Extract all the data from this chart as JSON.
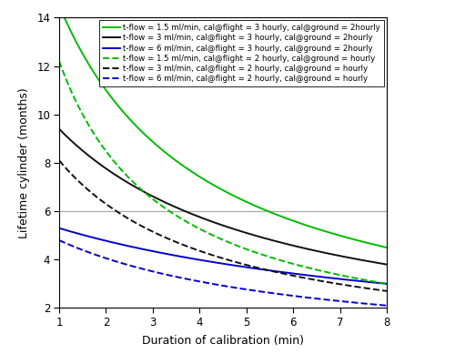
{
  "x_min": 1,
  "x_max": 8,
  "y_min": 2,
  "y_max": 14,
  "xlabel": "Duration of calibration (min)",
  "ylabel": "Lifetime cylinder (months)",
  "hline_y": 6,
  "hline_color": "#aaaaaa",
  "curve_params": [
    {
      "A": 45.675,
      "B": 2.15,
      "color": "#00bb00",
      "linestyle": "solid",
      "label": "t-flow = 1.5 ml/min, cal@flight = 3 hourly, cal@ground = 2hourly"
    },
    {
      "A": 44.65,
      "B": 3.75,
      "color": "#111111",
      "linestyle": "solid",
      "label": "t-flow = 3 ml/min, cal@flight = 3 hourly, cal@ground = 2hourly"
    },
    {
      "A": 48.39,
      "B": 8.13,
      "color": "#0000cc",
      "linestyle": "solid",
      "label": "t-flow = 6 ml/min, cal@flight = 3 hourly, cal@ground = 2hourly"
    },
    {
      "A": 27.85,
      "B": 1.283,
      "color": "#00bb00",
      "linestyle": "dashed",
      "label": "t-flow = 1.5 ml/min, cal@flight = 2 hourly, cal@ground = hourly"
    },
    {
      "A": 28.35,
      "B": 2.5,
      "color": "#111111",
      "linestyle": "dashed",
      "label": "t-flow = 3 ml/min, cal@flight = 2 hourly, cal@ground = hourly"
    },
    {
      "A": 26.13,
      "B": 4.444,
      "color": "#0000cc",
      "linestyle": "dashed",
      "label": "t-flow = 6 ml/min, cal@flight = 2 hourly, cal@ground = hourly"
    }
  ],
  "xticks": [
    1,
    2,
    3,
    4,
    5,
    6,
    7,
    8
  ],
  "yticks": [
    2,
    4,
    6,
    8,
    10,
    12,
    14
  ],
  "linewidth": 1.4,
  "legend_fontsize": 6.2,
  "axis_fontsize": 9.0,
  "tick_labelsize": 8.5,
  "background_color": "#ffffff"
}
